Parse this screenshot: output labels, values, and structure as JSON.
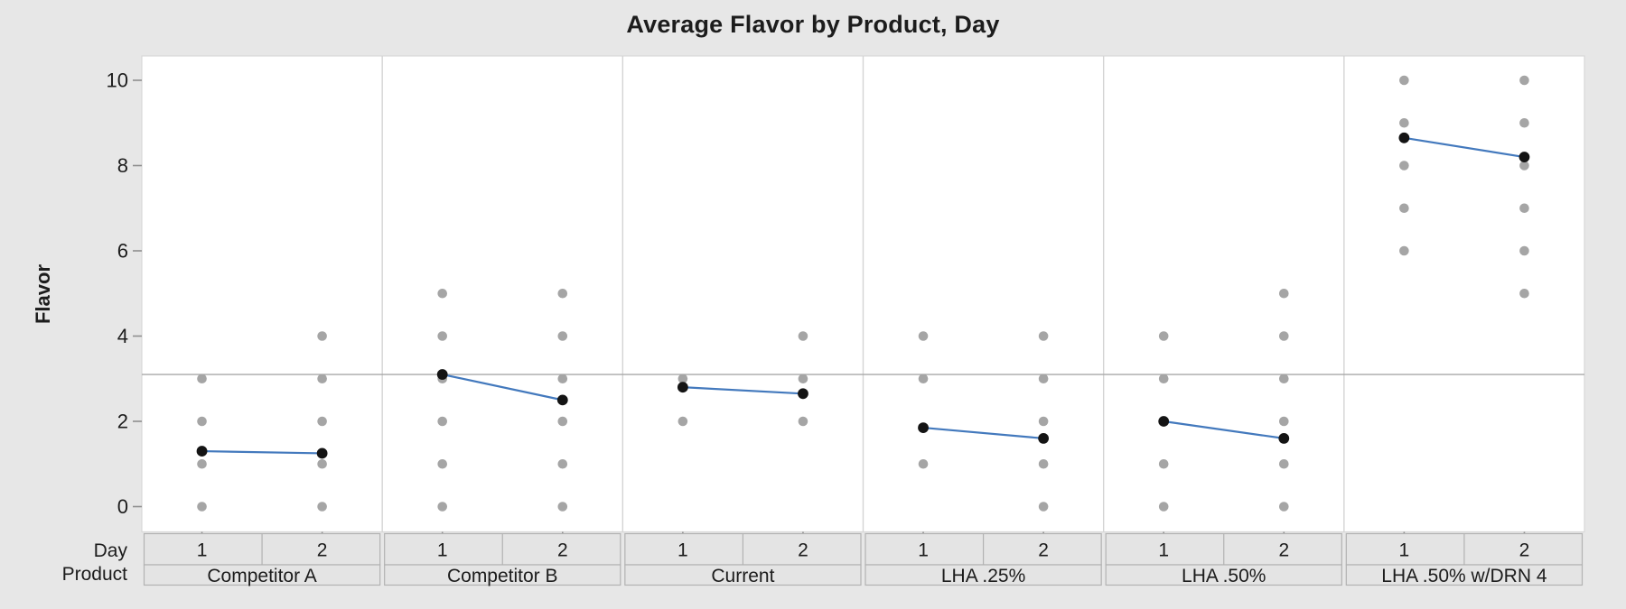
{
  "chart_data": {
    "type": "line",
    "subtype": "individual value plot with connected means (Minitab-style)",
    "title": "Average Flavor by Product, Day",
    "ylabel": "Flavor",
    "axis_rows": {
      "day_label": "Day",
      "product_label": "Product"
    },
    "yticks": [
      0,
      2,
      4,
      6,
      8,
      10
    ],
    "ylim": [
      -0.6,
      10.6
    ],
    "grid": "off",
    "legend": "none",
    "reference_line": 3.1,
    "day_levels": [
      "1",
      "2"
    ],
    "panels": [
      {
        "product": "Competitor A",
        "individual_points": {
          "day1": [
            3,
            2,
            1,
            0
          ],
          "day2": [
            4,
            3,
            2,
            1,
            0
          ]
        },
        "means": [
          1.3,
          1.25
        ]
      },
      {
        "product": "Competitor B",
        "individual_points": {
          "day1": [
            5,
            4,
            3,
            2,
            1,
            0
          ],
          "day2": [
            5,
            4,
            3,
            2,
            1,
            0
          ]
        },
        "means": [
          3.1,
          2.5
        ]
      },
      {
        "product": "Current",
        "individual_points": {
          "day1": [
            3,
            2
          ],
          "day2": [
            4,
            3,
            2
          ]
        },
        "means": [
          2.8,
          2.65
        ]
      },
      {
        "product": "LHA .25%",
        "individual_points": {
          "day1": [
            4,
            3,
            1
          ],
          "day2": [
            4,
            3,
            2,
            1,
            0
          ]
        },
        "means": [
          1.85,
          1.6
        ]
      },
      {
        "product": "LHA .50%",
        "individual_points": {
          "day1": [
            4,
            3,
            1,
            0
          ],
          "day2": [
            5,
            4,
            3,
            2,
            1,
            0
          ]
        },
        "means": [
          2.0,
          1.6
        ]
      },
      {
        "product": "LHA .50% w/DRN 4",
        "individual_points": {
          "day1": [
            10,
            9,
            8,
            7,
            6
          ],
          "day2": [
            10,
            9,
            8,
            7,
            6,
            5
          ]
        },
        "means": [
          8.65,
          8.2
        ]
      }
    ],
    "colors": {
      "background": "#e7e7e7",
      "plot_background": "#ffffff",
      "plot_border": "#d8d8d8",
      "panel_divider": "#d4d4d4",
      "reference_line": "#a8a8a8",
      "individual_point": "#a5a5a5",
      "mean_point": "#141414",
      "mean_line": "#4379bd",
      "strip_fill": "#e4e4e4",
      "strip_border": "#b2b2b2",
      "tick": "#8f8f8f",
      "text": "#1c1c1c"
    }
  }
}
